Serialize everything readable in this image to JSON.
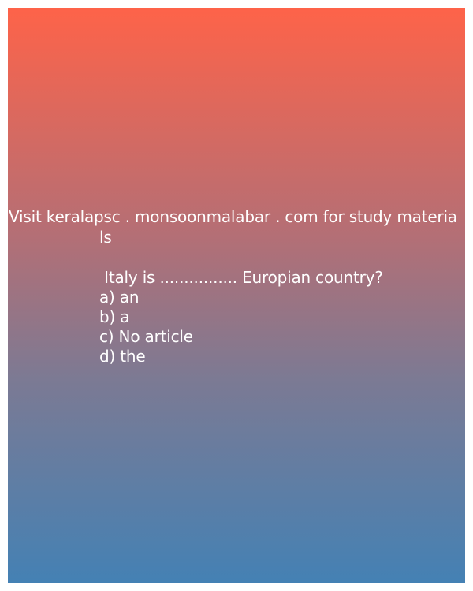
{
  "watermark": {
    "line1": "Visit keralapsc . monsoonmalabar . com for study materia",
    "line2": "ls"
  },
  "question": {
    "text": " Italy is ................ Europian country?",
    "options": [
      "a) an",
      "b) a",
      "c) No article",
      "d) the"
    ]
  },
  "colors": {
    "gradient_top": "#fe6349",
    "gradient_bottom": "#4481b4",
    "text": "#ffffff"
  }
}
